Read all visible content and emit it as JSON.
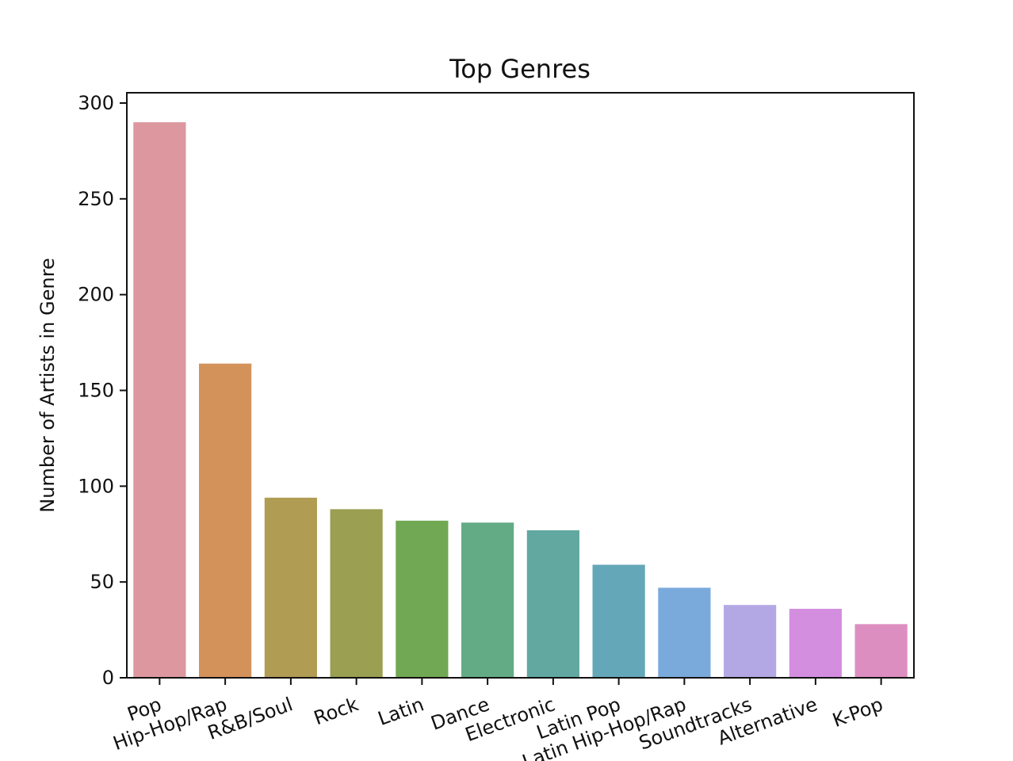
{
  "chart_data": {
    "type": "bar",
    "title": "Top Genres",
    "xlabel": "",
    "ylabel": "Number of Artists in Genre",
    "categories": [
      "Pop",
      "Hip-Hop/Rap",
      "R&B/Soul",
      "Rock",
      "Latin",
      "Dance",
      "Electronic",
      "Latin Pop",
      "Latin Hip-Hop/Rap",
      "Soundtracks",
      "Alternative",
      "K-Pop"
    ],
    "values": [
      290,
      164,
      94,
      88,
      82,
      81,
      77,
      59,
      47,
      38,
      36,
      28
    ],
    "colors": [
      "#dc979f",
      "#d4925b",
      "#b19c53",
      "#9a9f51",
      "#71a853",
      "#62ab85",
      "#62a8a0",
      "#64a7b8",
      "#7aaadc",
      "#b4a8e4",
      "#d48ee0",
      "#dd8ec0"
    ],
    "ylim": [
      0,
      305
    ],
    "yticks": [
      0,
      50,
      100,
      150,
      200,
      250,
      300
    ],
    "grid": false,
    "legend": "none"
  }
}
